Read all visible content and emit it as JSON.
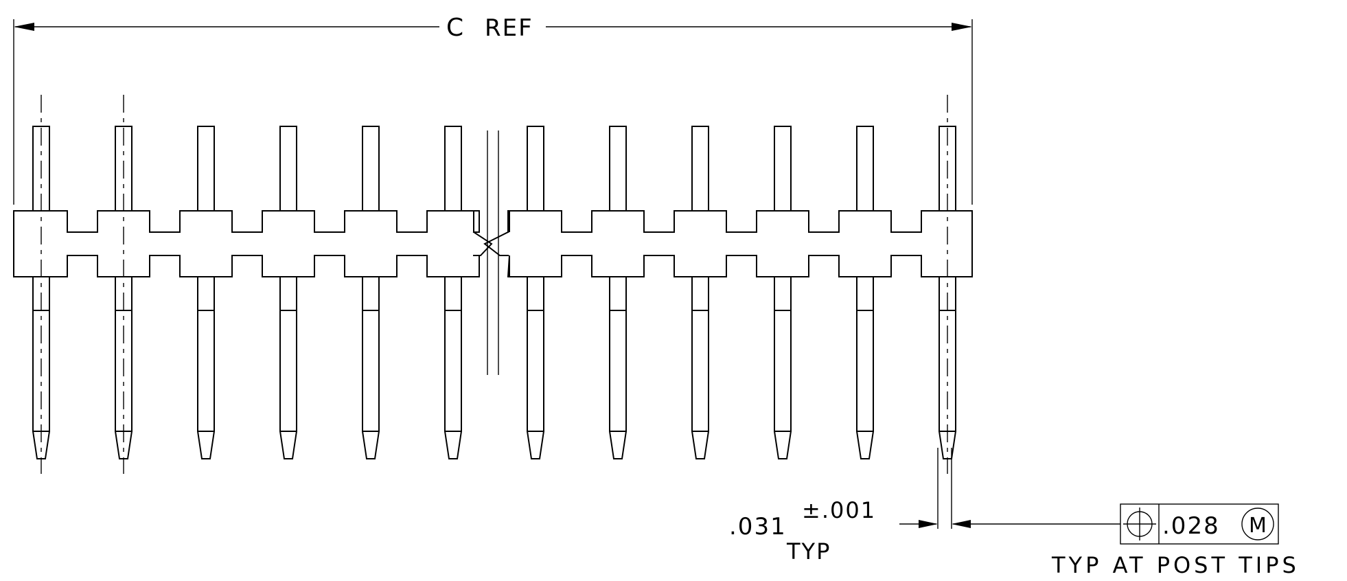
{
  "diagram": {
    "overall_dimension": {
      "symbol": "C",
      "text": "REF"
    },
    "pin_width_dimension": {
      "value": ".031",
      "tolerance": "±.001",
      "note": "TYP"
    },
    "position_tolerance": {
      "symbol": "position-symbol",
      "value": ".028",
      "modifier": "M",
      "note": "TYP AT POST TIPS"
    },
    "header": {
      "pins_left_of_break": 6,
      "pins_right_of_break": 6,
      "pins_with_centerlines": [
        0,
        1,
        11
      ]
    },
    "line_color": "#000000"
  }
}
